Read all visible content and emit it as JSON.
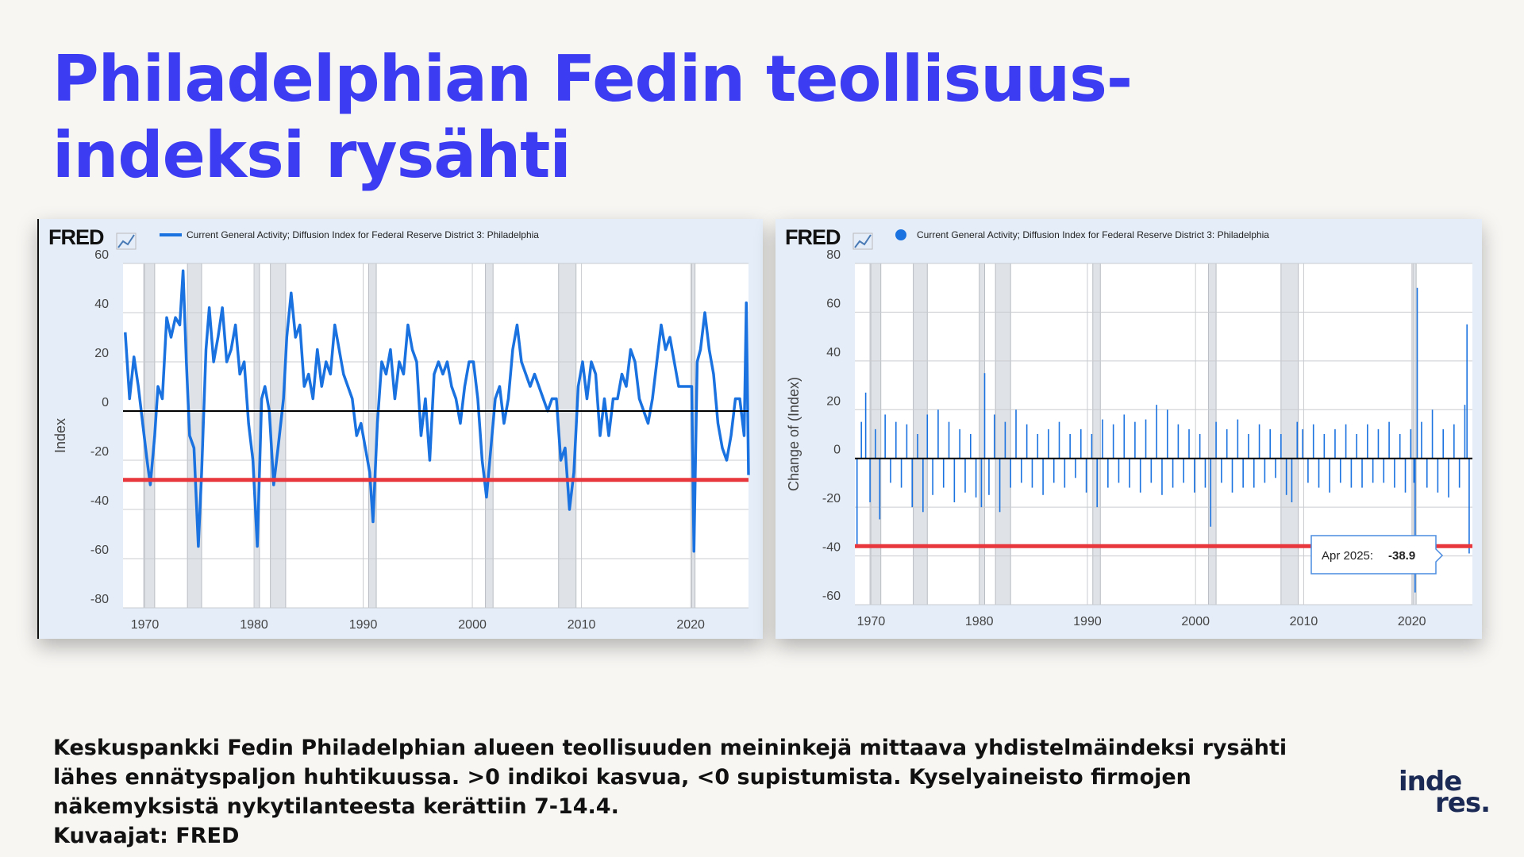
{
  "title_lines": [
    "Philadelphian Fedin teollisuus-",
    "indeksi rysähti"
  ],
  "caption_lines": [
    "Keskuspankki Fedin Philadelphian alueen teollisuuden meininkejä mittaava yhdistelmäindeksi rysähti",
    "lähes ennätyspaljon huhtikuussa. >0 indikoi kasvua, <0 supistumista. Kyselyaineisto firmojen",
    "näkemyksistä nykytilanteesta kerättiin 7-14.4.",
    "Kuvaajat: FRED"
  ],
  "logo_lines": [
    "inde",
    "res."
  ],
  "chart_data": [
    {
      "type": "line",
      "logo": "FRED",
      "ylabel": "Index",
      "xlim": [
        1968,
        2025.3
      ],
      "xticks": [
        1970,
        1980,
        1990,
        2000,
        2010,
        2020
      ],
      "ylim": [
        -80,
        60
      ],
      "yticks": [
        -80,
        -60,
        -40,
        -20,
        0,
        20,
        40,
        60
      ],
      "grid": true,
      "recessions": [
        [
          1969.9,
          1970.9
        ],
        [
          1973.9,
          1975.2
        ],
        [
          1980.0,
          1980.5
        ],
        [
          1981.5,
          1982.9
        ],
        [
          1990.5,
          1991.2
        ],
        [
          2001.2,
          2001.9
        ],
        [
          2007.9,
          2009.5
        ],
        [
          2020.1,
          2020.4
        ]
      ],
      "reference_lines": [
        {
          "value": 0,
          "color": "#000000"
        },
        {
          "value": -28,
          "color": "#e8383d"
        }
      ],
      "series": [
        {
          "name": "Current General Activity; Diffusion Index for Federal Reserve District 3: Philadelphia",
          "color": "#1a72e0",
          "x": [
            1968.2,
            1968.6,
            1969.0,
            1969.4,
            1969.8,
            1970.2,
            1970.5,
            1970.9,
            1971.2,
            1971.6,
            1972.0,
            1972.4,
            1972.8,
            1973.2,
            1973.5,
            1973.8,
            1974.1,
            1974.5,
            1974.9,
            1975.2,
            1975.6,
            1975.9,
            1976.3,
            1976.7,
            1977.1,
            1977.5,
            1977.9,
            1978.3,
            1978.7,
            1979.1,
            1979.5,
            1979.9,
            1980.3,
            1980.7,
            1981.0,
            1981.4,
            1981.8,
            1982.2,
            1982.7,
            1983.0,
            1983.4,
            1983.8,
            1984.2,
            1984.6,
            1985.0,
            1985.4,
            1985.8,
            1986.2,
            1986.6,
            1987.0,
            1987.4,
            1987.8,
            1988.2,
            1988.6,
            1989.0,
            1989.4,
            1989.8,
            1990.2,
            1990.6,
            1990.9,
            1991.3,
            1991.7,
            1992.1,
            1992.5,
            1992.9,
            1993.3,
            1993.7,
            1994.1,
            1994.5,
            1994.9,
            1995.3,
            1995.7,
            1996.1,
            1996.5,
            1996.9,
            1997.3,
            1997.7,
            1998.1,
            1998.5,
            1998.9,
            1999.3,
            1999.7,
            2000.1,
            2000.5,
            2000.9,
            2001.3,
            2001.7,
            2002.1,
            2002.5,
            2002.9,
            2003.3,
            2003.7,
            2004.1,
            2004.5,
            2004.9,
            2005.3,
            2005.7,
            2006.1,
            2006.5,
            2006.9,
            2007.3,
            2007.7,
            2008.1,
            2008.5,
            2008.9,
            2009.3,
            2009.7,
            2010.1,
            2010.5,
            2010.9,
            2011.3,
            2011.7,
            2012.1,
            2012.5,
            2012.9,
            2013.3,
            2013.7,
            2014.1,
            2014.5,
            2014.9,
            2015.3,
            2015.7,
            2016.1,
            2016.5,
            2016.9,
            2017.3,
            2017.7,
            2018.1,
            2018.5,
            2018.9,
            2019.3,
            2019.7,
            2020.1,
            2020.3,
            2020.6,
            2020.9,
            2021.3,
            2021.7,
            2022.1,
            2022.5,
            2022.9,
            2023.3,
            2023.7,
            2024.1,
            2024.5,
            2024.9,
            2025.1,
            2025.3
          ],
          "values": [
            32,
            5,
            22,
            10,
            -5,
            -20,
            -30,
            -10,
            10,
            5,
            38,
            30,
            38,
            35,
            57,
            20,
            -10,
            -15,
            -55,
            -25,
            25,
            42,
            20,
            30,
            42,
            20,
            25,
            35,
            15,
            20,
            -5,
            -20,
            -55,
            5,
            10,
            0,
            -30,
            -15,
            5,
            30,
            48,
            30,
            35,
            10,
            15,
            5,
            25,
            10,
            20,
            15,
            35,
            25,
            15,
            10,
            5,
            -10,
            -5,
            -15,
            -25,
            -45,
            -5,
            20,
            15,
            25,
            5,
            20,
            15,
            35,
            25,
            20,
            -10,
            5,
            -20,
            15,
            20,
            15,
            20,
            10,
            5,
            -5,
            10,
            20,
            20,
            5,
            -20,
            -35,
            -15,
            5,
            10,
            -5,
            5,
            25,
            35,
            20,
            15,
            10,
            15,
            10,
            5,
            0,
            5,
            5,
            -20,
            -15,
            -40,
            -25,
            10,
            20,
            5,
            20,
            15,
            -10,
            5,
            -10,
            5,
            5,
            15,
            10,
            25,
            20,
            5,
            0,
            -5,
            5,
            20,
            35,
            25,
            30,
            20,
            10,
            10,
            10,
            10,
            -57,
            20,
            25,
            40,
            25,
            15,
            -5,
            -15,
            -20,
            -10,
            5,
            5,
            -10,
            44,
            -26
          ]
        }
      ]
    },
    {
      "type": "bar",
      "logo": "FRED",
      "ylabel": "Change of (Index)",
      "xlim": [
        1968.5,
        2025.6
      ],
      "xticks": [
        1970,
        1980,
        1990,
        2000,
        2010,
        2020
      ],
      "ylim": [
        -60,
        80
      ],
      "yticks": [
        -60,
        -40,
        -20,
        0,
        20,
        40,
        60,
        80
      ],
      "grid": true,
      "recessions": [
        [
          1969.9,
          1970.9
        ],
        [
          1973.9,
          1975.2
        ],
        [
          1980.0,
          1980.5
        ],
        [
          1981.5,
          1982.9
        ],
        [
          1990.5,
          1991.2
        ],
        [
          2001.2,
          2001.9
        ],
        [
          2007.9,
          2009.5
        ],
        [
          2020.1,
          2020.4
        ]
      ],
      "reference_lines": [
        {
          "value": 0,
          "color": "#000000"
        },
        {
          "value": -36,
          "color": "#e8383d"
        }
      ],
      "tooltip": {
        "label": "Apr 2025:",
        "value": -38.9
      },
      "series": [
        {
          "name": "Current General Activity; Diffusion Index for Federal Reserve District 3: Philadelphia",
          "color": "#1a72e0",
          "x": [
            1968.7,
            1969.1,
            1969.5,
            1969.9,
            1970.4,
            1970.8,
            1971.3,
            1971.8,
            1972.3,
            1972.8,
            1973.3,
            1973.8,
            1974.3,
            1974.8,
            1975.2,
            1975.7,
            1976.2,
            1976.7,
            1977.2,
            1977.7,
            1978.2,
            1978.7,
            1979.2,
            1979.7,
            1980.2,
            1980.5,
            1980.9,
            1981.4,
            1981.9,
            1982.4,
            1982.9,
            1983.4,
            1983.9,
            1984.4,
            1984.9,
            1985.4,
            1985.9,
            1986.4,
            1986.9,
            1987.4,
            1987.9,
            1988.4,
            1988.9,
            1989.4,
            1989.9,
            1990.4,
            1990.9,
            1991.4,
            1991.9,
            1992.4,
            1992.9,
            1993.4,
            1993.9,
            1994.4,
            1994.9,
            1995.4,
            1995.9,
            1996.4,
            1996.9,
            1997.4,
            1997.9,
            1998.4,
            1998.9,
            1999.4,
            1999.9,
            2000.4,
            2000.9,
            2001.4,
            2001.9,
            2002.4,
            2002.9,
            2003.4,
            2003.9,
            2004.4,
            2004.9,
            2005.4,
            2005.9,
            2006.4,
            2006.9,
            2007.4,
            2007.9,
            2008.4,
            2008.9,
            2009.4,
            2009.9,
            2010.4,
            2010.9,
            2011.4,
            2011.9,
            2012.4,
            2012.9,
            2013.4,
            2013.9,
            2014.4,
            2014.9,
            2015.4,
            2015.9,
            2016.4,
            2016.9,
            2017.4,
            2017.9,
            2018.4,
            2018.9,
            2019.4,
            2019.9,
            2020.2,
            2020.3,
            2020.5,
            2020.9,
            2021.4,
            2021.9,
            2022.4,
            2022.9,
            2023.4,
            2023.9,
            2024.4,
            2024.9,
            2025.1,
            2025.3
          ],
          "values": [
            -36,
            15,
            27,
            -18,
            12,
            -25,
            18,
            -10,
            15,
            -12,
            14,
            -20,
            10,
            -22,
            18,
            -15,
            20,
            -12,
            15,
            -18,
            12,
            -14,
            10,
            -16,
            -20,
            35,
            -15,
            18,
            -22,
            15,
            -12,
            20,
            -10,
            14,
            -12,
            10,
            -15,
            12,
            -10,
            15,
            -12,
            10,
            -8,
            12,
            -14,
            10,
            -20,
            16,
            -12,
            14,
            -10,
            18,
            -12,
            15,
            -14,
            16,
            -10,
            22,
            -15,
            20,
            -12,
            14,
            -10,
            12,
            -14,
            10,
            -12,
            -28,
            15,
            -10,
            12,
            -14,
            16,
            -12,
            10,
            -12,
            14,
            -10,
            12,
            -8,
            10,
            -15,
            -18,
            15,
            12,
            -10,
            14,
            -12,
            10,
            -14,
            12,
            -10,
            14,
            -12,
            10,
            -12,
            14,
            -10,
            12,
            -10,
            15,
            -12,
            10,
            -14,
            12,
            -10,
            -55,
            70,
            15,
            -12,
            20,
            -14,
            12,
            -16,
            14,
            -12,
            22,
            55,
            -39
          ]
        }
      ]
    }
  ]
}
